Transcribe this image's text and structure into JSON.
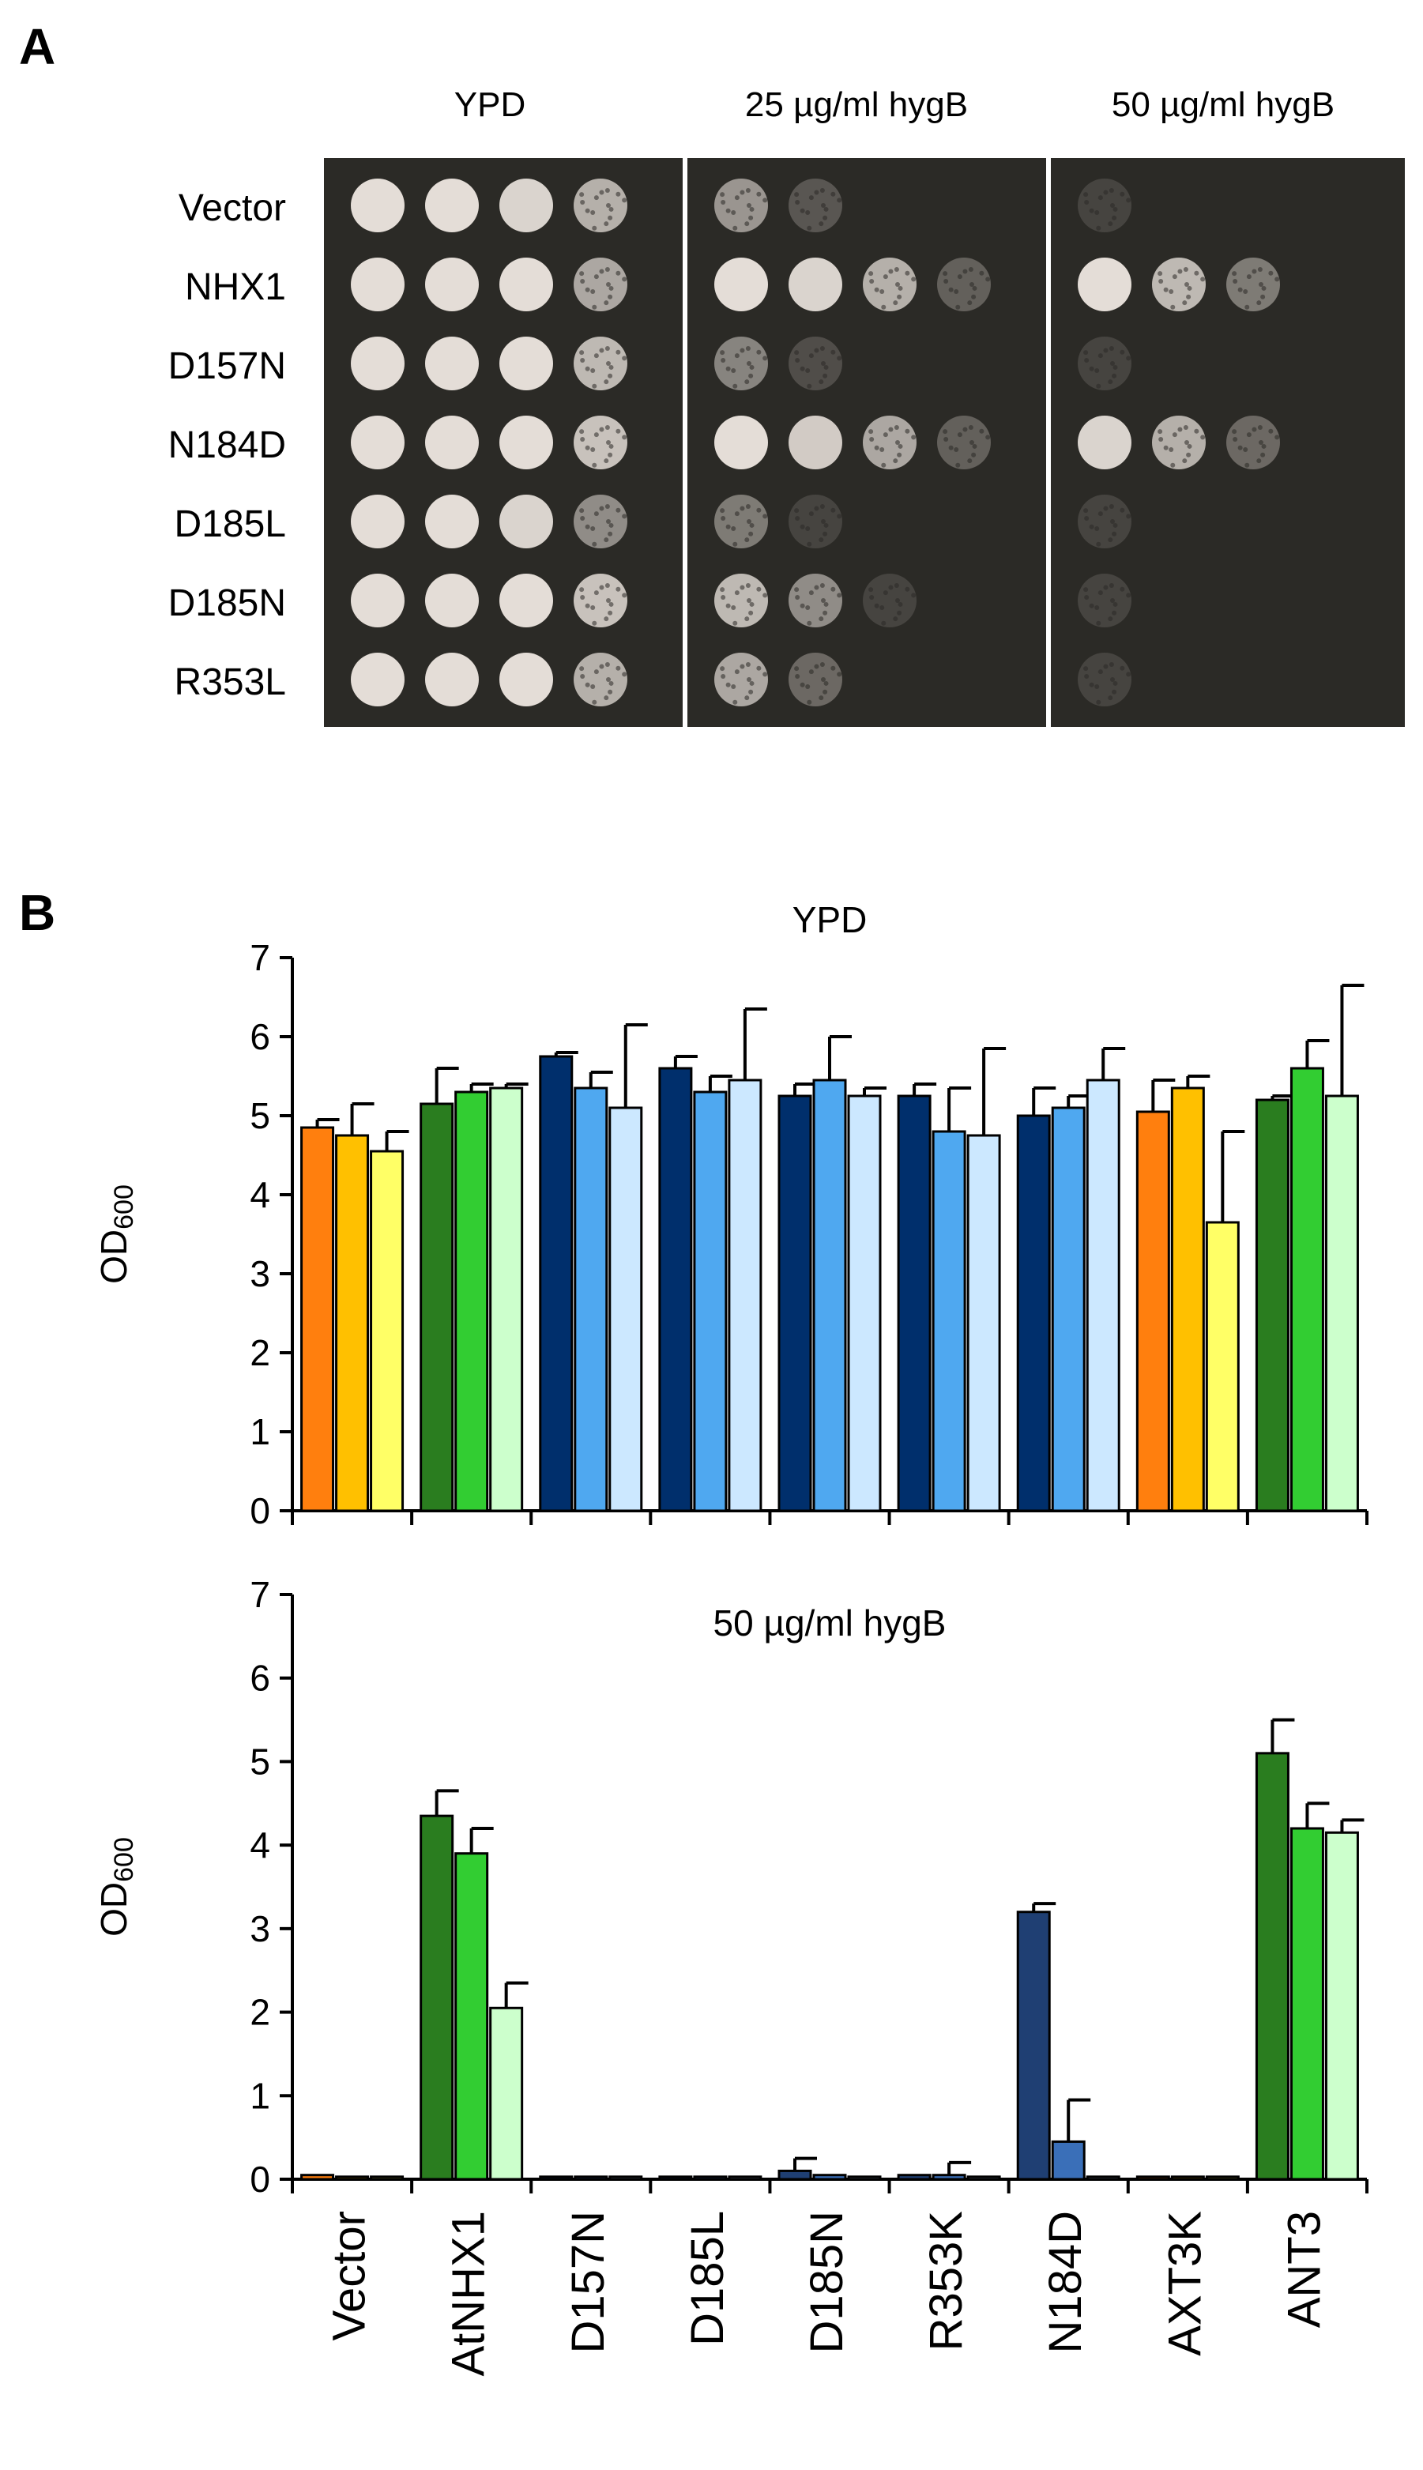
{
  "panelA": {
    "letter": "A",
    "conditions": [
      "YPD",
      "25 µg/ml hygB",
      "50 µg/ml hygB"
    ],
    "strains": [
      "Vector",
      "NHX1",
      "D157N",
      "N184D",
      "D185L",
      "D185N",
      "R353L"
    ],
    "colors": {
      "plate_bg": "#2b2a26",
      "colony": "#e4ddd7"
    },
    "growth": [
      [
        [
          1,
          1,
          0.95,
          0.75
        ],
        [
          0.6,
          0.25,
          0,
          0
        ],
        [
          0.12,
          0,
          0,
          0
        ]
      ],
      [
        [
          1,
          1,
          1,
          0.7
        ],
        [
          1,
          0.95,
          0.75,
          0.3
        ],
        [
          1,
          0.8,
          0.45,
          0
        ]
      ],
      [
        [
          1,
          1,
          1,
          0.8
        ],
        [
          0.5,
          0.2,
          0,
          0
        ],
        [
          0.12,
          0,
          0,
          0
        ]
      ],
      [
        [
          1,
          1,
          1,
          0.85
        ],
        [
          1,
          0.9,
          0.7,
          0.3
        ],
        [
          0.95,
          0.75,
          0.35,
          0
        ]
      ],
      [
        [
          1,
          1,
          0.95,
          0.55
        ],
        [
          0.45,
          0.1,
          0,
          0
        ],
        [
          0.1,
          0,
          0,
          0
        ]
      ],
      [
        [
          1,
          1,
          1,
          0.85
        ],
        [
          0.8,
          0.55,
          0.1,
          0
        ],
        [
          0.15,
          0,
          0,
          0
        ]
      ],
      [
        [
          1,
          1,
          1,
          0.75
        ],
        [
          0.7,
          0.35,
          0,
          0
        ],
        [
          0.15,
          0,
          0,
          0
        ]
      ]
    ]
  },
  "panelB": {
    "letter": "B",
    "categories": [
      "Vector",
      "AtNHX1",
      "D157N",
      "D185L",
      "D185N",
      "R353K",
      "N184D",
      "AXT3K",
      "ANT3"
    ],
    "ylabel_main": "OD",
    "ylabel_sub": "600"
  },
  "chart_data": [
    {
      "type": "bar",
      "title": "YPD",
      "ylabel": "OD600",
      "ylim": [
        0,
        7
      ],
      "yticks": [
        0,
        1,
        2,
        3,
        4,
        5,
        6,
        7
      ],
      "categories": [
        "Vector",
        "AtNHX1",
        "D157N",
        "D185L",
        "D185N",
        "R353K",
        "N184D",
        "AXT3K",
        "ANT3"
      ],
      "values": [
        [
          4.85,
          4.75,
          4.55
        ],
        [
          5.15,
          5.3,
          5.35
        ],
        [
          5.75,
          5.35,
          5.1
        ],
        [
          5.6,
          5.3,
          5.45
        ],
        [
          5.25,
          5.45,
          5.25
        ],
        [
          5.25,
          4.8,
          4.75
        ],
        [
          5.0,
          5.1,
          5.45
        ],
        [
          5.05,
          5.35,
          3.65
        ],
        [
          5.2,
          5.6,
          5.25
        ]
      ],
      "errors": [
        [
          0.1,
          0.4,
          0.25
        ],
        [
          0.45,
          0.1,
          0.05
        ],
        [
          0.05,
          0.2,
          1.05
        ],
        [
          0.15,
          0.2,
          0.9
        ],
        [
          0.15,
          0.55,
          0.1
        ],
        [
          0.15,
          0.55,
          1.1
        ],
        [
          0.35,
          0.15,
          0.4
        ],
        [
          0.4,
          0.15,
          1.15
        ],
        [
          0.05,
          0.35,
          1.4
        ]
      ],
      "bar_colors": [
        [
          "#ff7f0e",
          "#ffc000",
          "#ffff66"
        ],
        [
          "#2a7d1f",
          "#32cd32",
          "#ccffcc"
        ],
        [
          "#002f6c",
          "#4fa8f0",
          "#cce8ff"
        ],
        [
          "#002f6c",
          "#4fa8f0",
          "#cce8ff"
        ],
        [
          "#002f6c",
          "#4fa8f0",
          "#cce8ff"
        ],
        [
          "#002f6c",
          "#4fa8f0",
          "#cce8ff"
        ],
        [
          "#002f6c",
          "#4fa8f0",
          "#cce8ff"
        ],
        [
          "#ff7f0e",
          "#ffc000",
          "#ffff66"
        ],
        [
          "#2a7d1f",
          "#32cd32",
          "#ccffcc"
        ]
      ]
    },
    {
      "type": "bar",
      "title": "50 µg/ml hygB",
      "ylabel": "OD600",
      "ylim": [
        0,
        7
      ],
      "yticks": [
        0,
        1,
        2,
        3,
        4,
        5,
        6,
        7
      ],
      "categories": [
        "Vector",
        "AtNHX1",
        "D157N",
        "D185L",
        "D185N",
        "R353K",
        "N184D",
        "AXT3K",
        "ANT3"
      ],
      "values": [
        [
          0.05,
          0.03,
          0.03
        ],
        [
          4.35,
          3.9,
          2.05
        ],
        [
          0.03,
          0.03,
          0.03
        ],
        [
          0.03,
          0.03,
          0.03
        ],
        [
          0.1,
          0.05,
          0.03
        ],
        [
          0.05,
          0.05,
          0.03
        ],
        [
          3.2,
          0.45,
          0.03
        ],
        [
          0.03,
          0.03,
          0.03
        ],
        [
          5.1,
          4.2,
          4.15
        ]
      ],
      "errors": [
        [
          0,
          0,
          0
        ],
        [
          0.3,
          0.3,
          0.3
        ],
        [
          0,
          0,
          0
        ],
        [
          0,
          0,
          0
        ],
        [
          0.15,
          0,
          0
        ],
        [
          0,
          0.15,
          0
        ],
        [
          0.1,
          0.5,
          0
        ],
        [
          0,
          0,
          0
        ],
        [
          0.4,
          0.3,
          0.15
        ]
      ],
      "bar_colors": [
        [
          "#ff7f0e",
          "#ffc000",
          "#ffff66"
        ],
        [
          "#2a7d1f",
          "#32cd32",
          "#ccffcc"
        ],
        [
          "#1f3f73",
          "#3a6fb8",
          "#bcd8f5"
        ],
        [
          "#1f3f73",
          "#3a6fb8",
          "#bcd8f5"
        ],
        [
          "#1f3f73",
          "#3a6fb8",
          "#bcd8f5"
        ],
        [
          "#1f3f73",
          "#3a6fb8",
          "#bcd8f5"
        ],
        [
          "#1f3f73",
          "#3a6fb8",
          "#bcd8f5"
        ],
        [
          "#ff7f0e",
          "#ffc000",
          "#ffff66"
        ],
        [
          "#2a7d1f",
          "#32cd32",
          "#ccffcc"
        ]
      ]
    }
  ]
}
